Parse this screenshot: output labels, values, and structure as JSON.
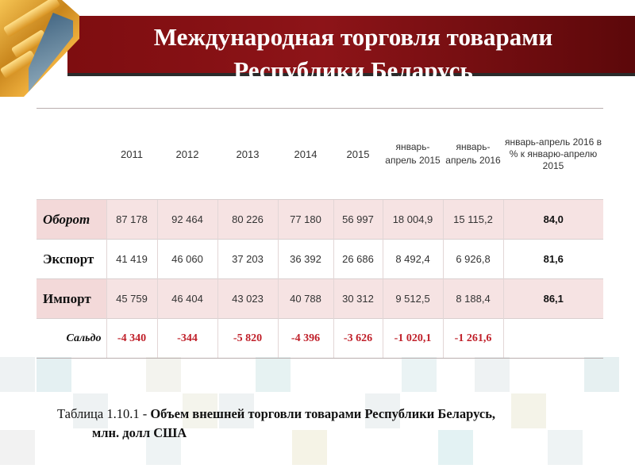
{
  "title": "Международная торговля товарами Республики Беларусь",
  "table": {
    "headers": [
      "",
      "2011",
      "2012",
      "2013",
      "2014",
      "2015",
      "январь-апрель 2015",
      "январь-апрель 2016",
      "январь-апрель 2016 в % к январю-апрелю 2015"
    ],
    "rows": [
      {
        "label": "Оборот",
        "values": [
          "87 178",
          "92 464",
          "80 226",
          "77 180",
          "56 997",
          "18 004,9",
          "15 115,2",
          "84,0"
        ]
      },
      {
        "label": "Экспорт",
        "values": [
          "41 419",
          "46 060",
          "37 203",
          "36 392",
          "26 686",
          "8 492,4",
          "6 926,8",
          "81,6"
        ]
      },
      {
        "label": "Импорт",
        "values": [
          "45 759",
          "46 404",
          "43 023",
          "40 788",
          "30 312",
          "9 512,5",
          "8 188,4",
          "86,1"
        ]
      },
      {
        "label": "Сальдо",
        "values": [
          "-4 340",
          "-344",
          "-5 820",
          "-4 396",
          "-3 626",
          "-1 020,1",
          "-1 261,6",
          ""
        ]
      }
    ]
  },
  "caption": {
    "prefix": "Таблица 1.10.1 - ",
    "bold_line1": "Объем внешней торговли товарами Республики Беларусь,",
    "bold_line2": "млн. долл США"
  },
  "colors": {
    "header_band": "#7e0d10",
    "saldo_text": "#c0202a",
    "shaded_row": "#f6e3e3"
  }
}
